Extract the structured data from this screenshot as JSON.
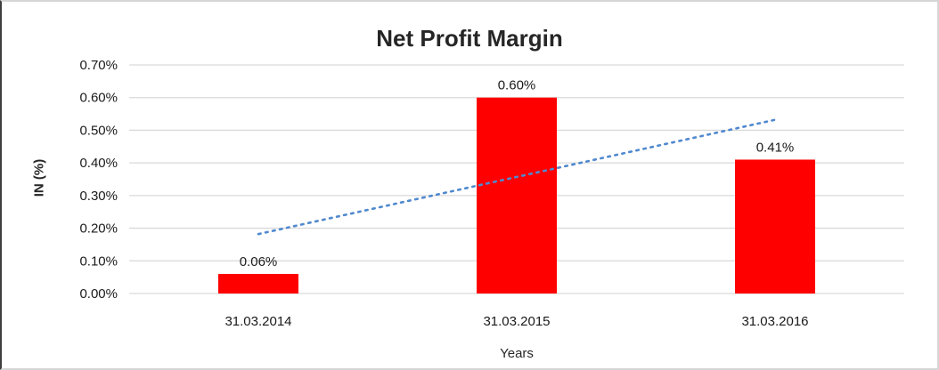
{
  "chart_data": {
    "type": "bar",
    "title": "Net Profit Margin",
    "xlabel": "Years",
    "ylabel": "IN (%)",
    "categories": [
      "31.03.2014",
      "31.03.2015",
      "31.03.2016"
    ],
    "values": [
      0.06,
      0.6,
      0.41
    ],
    "data_labels": [
      "0.06%",
      "0.60%",
      "0.41%"
    ],
    "y_ticks": [
      "0.00%",
      "0.10%",
      "0.20%",
      "0.30%",
      "0.40%",
      "0.50%",
      "0.60%",
      "0.70%"
    ],
    "ylim": [
      0,
      0.7
    ],
    "grid": true,
    "legend": "none",
    "bar_color": "#FF0000",
    "gridline_color": "#D9D9D9",
    "label_color": "#1a1a1a",
    "trendline": {
      "type": "linear",
      "style": "dotted",
      "color": "#5089CE",
      "start_value": 0.182,
      "end_value": 0.532
    }
  }
}
